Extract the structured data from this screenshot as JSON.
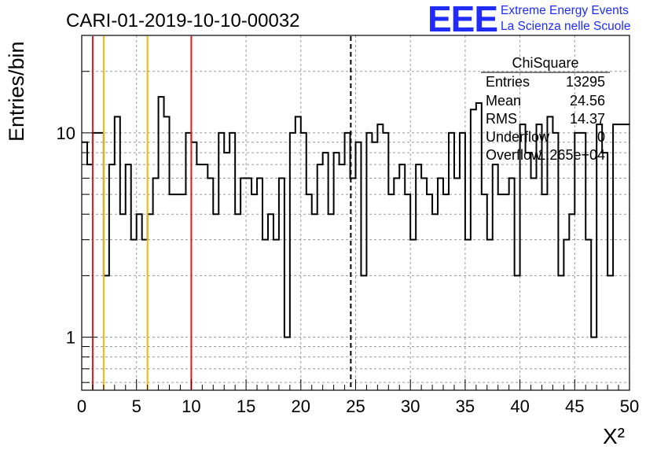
{
  "chart_data": {
    "type": "histogram",
    "title": "CARI-01-2019-10-10-00032",
    "xlabel": "X²",
    "ylabel": "Entries/bin",
    "xlim": [
      0,
      50
    ],
    "ylim": [
      0.55,
      30
    ],
    "y_scale": "log",
    "grid": true,
    "bin_width": 0.5,
    "x_ticks": [
      "0",
      "5",
      "10",
      "15",
      "20",
      "25",
      "30",
      "35",
      "40",
      "45",
      "50"
    ],
    "y_ticks": [
      "1",
      "10"
    ],
    "values": [
      9,
      7,
      10,
      10,
      2,
      7,
      12,
      4,
      7,
      3,
      4,
      3,
      4,
      6,
      15,
      12,
      5,
      5,
      5,
      10,
      9,
      7,
      7,
      6,
      4,
      10,
      8,
      10,
      4,
      6,
      6,
      5,
      6,
      3,
      4,
      3,
      6,
      1,
      10,
      12,
      10,
      5,
      4,
      7,
      8,
      4,
      8,
      7,
      10,
      6,
      9,
      2,
      10,
      9,
      11,
      10,
      5,
      6,
      7,
      5,
      3,
      7,
      6,
      5,
      4,
      6,
      5,
      10,
      6,
      10,
      3,
      13,
      14,
      5,
      3,
      7,
      5,
      5,
      6,
      2,
      11,
      8,
      6,
      11,
      5,
      12,
      10,
      2,
      3,
      4,
      10,
      10,
      3,
      1,
      11,
      8,
      2,
      11,
      11,
      11
    ],
    "vertical_lines": [
      {
        "x": 1,
        "color": "#e41a1c",
        "style": "solid"
      },
      {
        "x": 2,
        "color": "#f2b705",
        "style": "solid"
      },
      {
        "x": 6,
        "color": "#f2b705",
        "style": "solid"
      },
      {
        "x": 10,
        "color": "#e41a1c",
        "style": "solid"
      },
      {
        "x": 24.56,
        "color": "#000000",
        "style": "dashed"
      }
    ],
    "stats_box": {
      "title": "ChiSquare",
      "rows": [
        {
          "label": "Entries",
          "value": "13295"
        },
        {
          "label": "Mean",
          "value": "24.56"
        },
        {
          "label": "RMS",
          "value": "14.37"
        },
        {
          "label": "Underflow",
          "value": "0"
        },
        {
          "label": "Overflow",
          "value": "1.265e+04"
        }
      ]
    }
  },
  "logo": {
    "mark": "EEE",
    "line1": "Extreme Energy Events",
    "line2": "La Scienza nelle Scuole",
    "color": "#1f2bff"
  }
}
